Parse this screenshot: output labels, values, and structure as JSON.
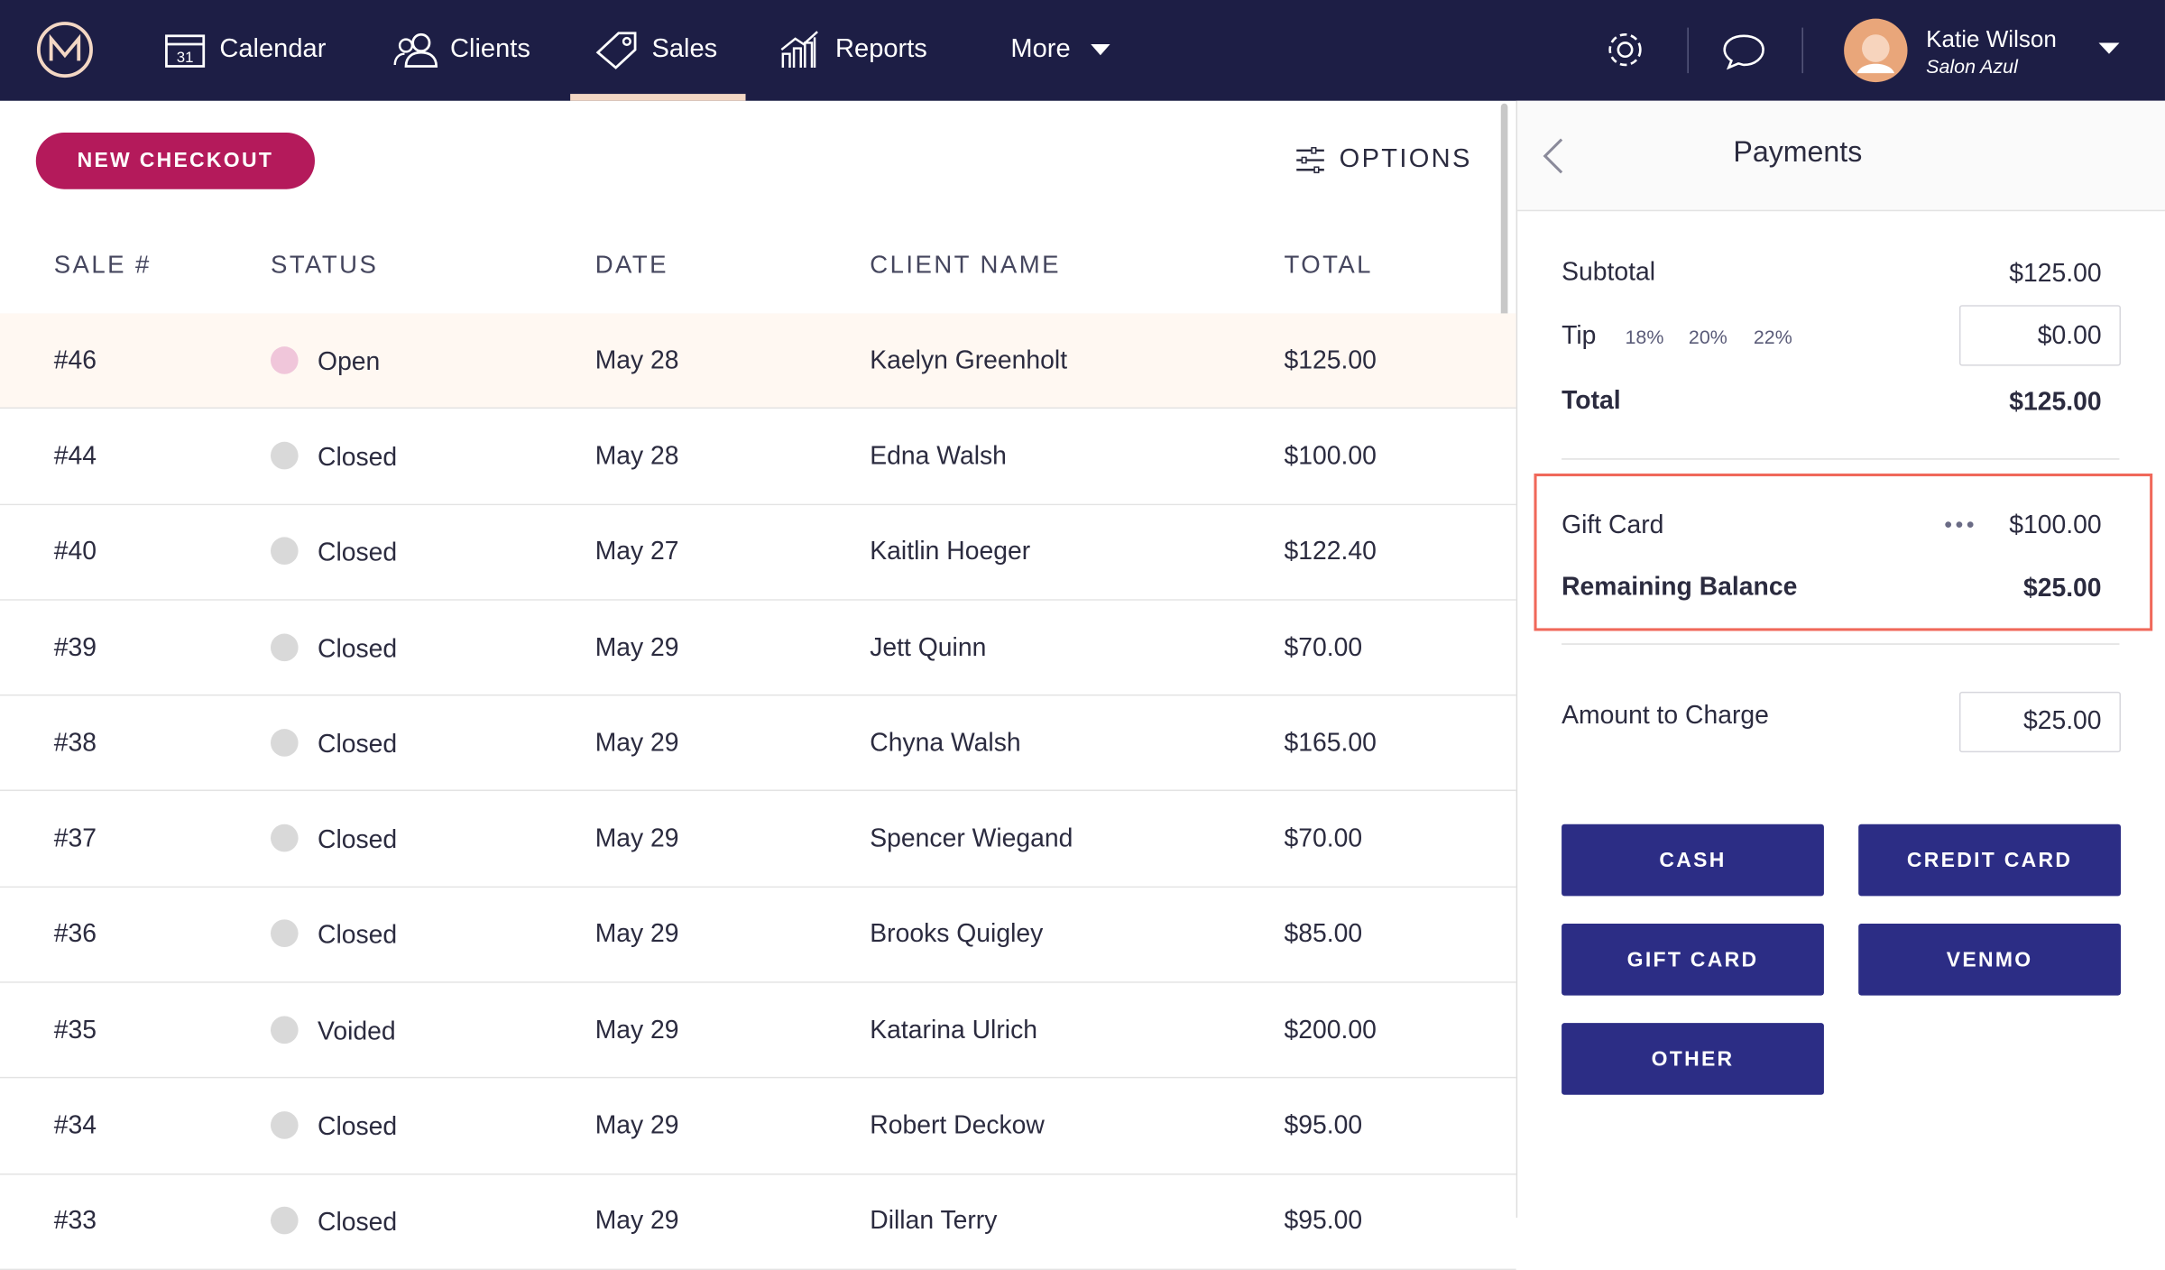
{
  "nav": {
    "items": [
      "Calendar",
      "Clients",
      "Sales",
      "Reports",
      "More"
    ],
    "user_name": "Katie Wilson",
    "user_salon": "Salon Azul"
  },
  "toolbar": {
    "new_checkout": "NEW CHECKOUT",
    "options": "OPTIONS"
  },
  "table": {
    "columns": [
      "SALE #",
      "STATUS",
      "DATE",
      "CLIENT NAME",
      "TOTAL"
    ],
    "rows": [
      [
        "#46",
        "Open",
        "May 28",
        "Kaelyn Greenholt",
        "$125.00"
      ],
      [
        "#44",
        "Closed",
        "May 28",
        "Edna Walsh",
        "$100.00"
      ],
      [
        "#40",
        "Closed",
        "May 27",
        "Kaitlin Hoeger",
        "$122.40"
      ],
      [
        "#39",
        "Closed",
        "May 29",
        "Jett Quinn",
        "$70.00"
      ],
      [
        "#38",
        "Closed",
        "May 29",
        "Chyna Walsh",
        "$165.00"
      ],
      [
        "#37",
        "Closed",
        "May 29",
        "Spencer Wiegand",
        "$70.00"
      ],
      [
        "#36",
        "Closed",
        "May 29",
        "Brooks Quigley",
        "$85.00"
      ],
      [
        "#35",
        "Voided",
        "May 29",
        "Katarina Ulrich",
        "$200.00"
      ],
      [
        "#34",
        "Closed",
        "May 29",
        "Robert Deckow",
        "$95.00"
      ],
      [
        "#33",
        "Closed",
        "May 29",
        "Dillan Terry",
        "$95.00"
      ]
    ]
  },
  "payments": {
    "title": "Payments",
    "subtotal_label": "Subtotal",
    "subtotal": "$125.00",
    "tip_label": "Tip",
    "tip_options": [
      "18%",
      "20%",
      "22%"
    ],
    "tip": "$0.00",
    "total_label": "Total",
    "total": "$125.00",
    "gift_card_label": "Gift Card",
    "gift_card": "$100.00",
    "remaining_label": "Remaining Balance",
    "remaining": "$25.00",
    "amount_label": "Amount to Charge",
    "amount": "$25.00",
    "methods": [
      "CASH",
      "CREDIT CARD",
      "GIFT CARD",
      "VENMO",
      "OTHER"
    ]
  }
}
